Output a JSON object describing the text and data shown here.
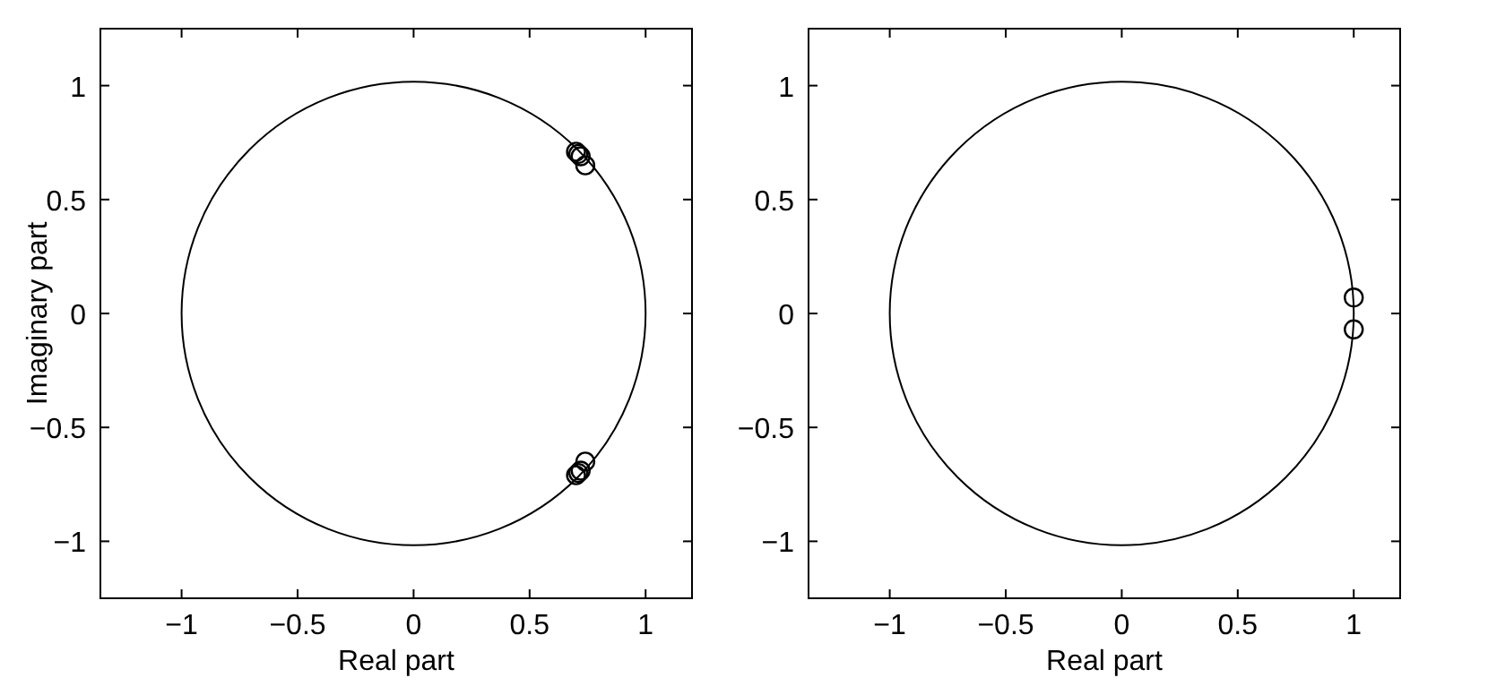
{
  "chart_data": [
    {
      "type": "scatter",
      "xlabel": "Real part",
      "ylabel": "Imaginary part",
      "xlim": [
        -1.35,
        1.2
      ],
      "ylim": [
        -1.25,
        1.25
      ],
      "xticks": [
        -1,
        -0.5,
        0,
        0.5,
        1
      ],
      "yticks": [
        -1,
        -0.5,
        0,
        0.5,
        1
      ],
      "grid": false,
      "marker": "circle",
      "series": [
        {
          "color": "#000000",
          "x": [
            0.7,
            0.71,
            0.72,
            0.74,
            0.7,
            0.71,
            0.72,
            0.74
          ],
          "values": [
            0.71,
            0.7,
            0.69,
            0.65,
            -0.71,
            -0.7,
            -0.69,
            -0.65
          ]
        }
      ]
    },
    {
      "type": "scatter",
      "xlabel": "Real part",
      "xlim": [
        -1.35,
        1.2
      ],
      "ylim": [
        -1.25,
        1.25
      ],
      "xticks": [
        -1,
        -0.5,
        0,
        0.5,
        1
      ],
      "yticks": [
        -1,
        -0.5,
        0,
        0.5,
        1
      ],
      "grid": false,
      "marker": "circle",
      "series": [
        {
          "color": "#000000",
          "x": [
            1,
            1
          ],
          "values": [
            0.07,
            -0.07
          ]
        }
      ]
    }
  ]
}
